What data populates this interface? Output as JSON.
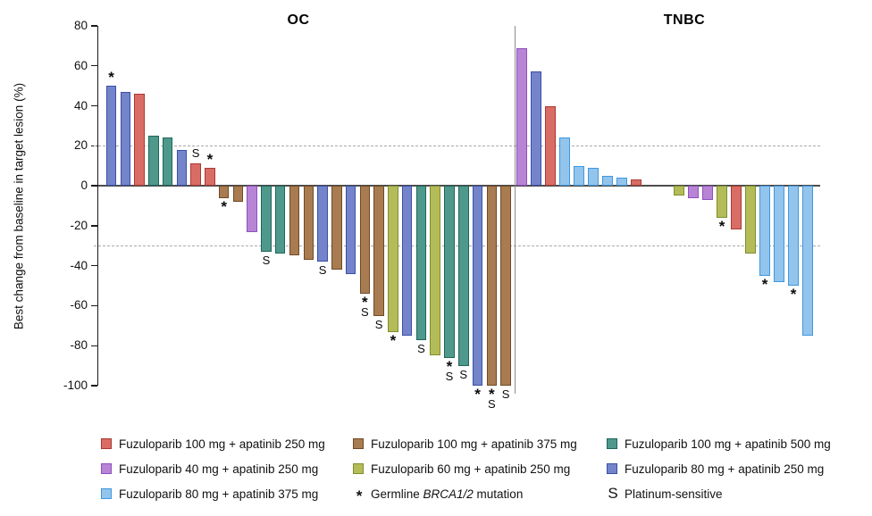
{
  "chart_data": {
    "type": "bar",
    "subtype": "waterfall",
    "title": "",
    "ylabel": "Best change from baseline in target lesion (%)",
    "ylim": [
      -100,
      80
    ],
    "yticks": [
      80,
      60,
      40,
      20,
      0,
      -20,
      -40,
      -60,
      -80,
      -100
    ],
    "reference_lines": [
      20,
      -30
    ],
    "grid": false,
    "legend_position": "bottom",
    "groups": {
      "red": {
        "fill": "#D96C64",
        "border": "#A93A33",
        "label": "Fuzuloparib 100 mg + apatinib 250 mg"
      },
      "brown": {
        "fill": "#A87C50",
        "border": "#6F4A26",
        "label": "Fuzuloparib 100 mg + apatinib 375 mg"
      },
      "teal": {
        "fill": "#4F998C",
        "border": "#1F655A",
        "label": "Fuzuloparib 100 mg + apatinib 500 mg"
      },
      "orchid": {
        "fill": "#B885D6",
        "border": "#8F4FBE",
        "label": "Fuzuloparib 40 mg + apatinib 250 mg"
      },
      "olive": {
        "fill": "#B4BC59",
        "border": "#7F8F2D",
        "label": "Fuzuloparib 60 mg + apatinib 250 mg"
      },
      "slate": {
        "fill": "#7484CB",
        "border": "#3A50A5",
        "label": "Fuzuloparib 80 mg + apatinib 250 mg"
      },
      "sky": {
        "fill": "#93C4EB",
        "border": "#3E98E0",
        "label": "Fuzuloparib 80 mg + apatinib 375 mg"
      }
    },
    "marker_meanings": {
      "*": "Germline BRCA1/2 mutation",
      "S": "Platinum-sensitive"
    },
    "panels": [
      {
        "title": "OC",
        "bars": [
          {
            "value": 50,
            "group": "slate",
            "markers": [
              "*"
            ]
          },
          {
            "value": 47,
            "group": "slate"
          },
          {
            "value": 46,
            "group": "red"
          },
          {
            "value": 25,
            "group": "teal"
          },
          {
            "value": 24,
            "group": "teal"
          },
          {
            "value": 18,
            "group": "slate"
          },
          {
            "value": 11,
            "group": "red",
            "markers": [
              "S"
            ]
          },
          {
            "value": 9,
            "group": "red",
            "markers": [
              "*"
            ]
          },
          {
            "value": -6,
            "group": "brown",
            "markers": [
              "*"
            ]
          },
          {
            "value": -8,
            "group": "brown"
          },
          {
            "value": -23,
            "group": "orchid"
          },
          {
            "value": -33,
            "group": "teal",
            "markers": [
              "S"
            ]
          },
          {
            "value": -34,
            "group": "teal"
          },
          {
            "value": -35,
            "group": "brown"
          },
          {
            "value": -37,
            "group": "brown"
          },
          {
            "value": -38,
            "group": "slate",
            "markers": [
              "S"
            ]
          },
          {
            "value": -42,
            "group": "brown"
          },
          {
            "value": -44,
            "group": "slate"
          },
          {
            "value": -54,
            "group": "brown",
            "markers": [
              "*",
              "S"
            ]
          },
          {
            "value": -65,
            "group": "brown",
            "markers": [
              "S"
            ]
          },
          {
            "value": -73,
            "group": "olive",
            "markers": [
              "*"
            ]
          },
          {
            "value": -75,
            "group": "slate"
          },
          {
            "value": -77,
            "group": "teal",
            "markers": [
              "S"
            ]
          },
          {
            "value": -85,
            "group": "olive"
          },
          {
            "value": -86,
            "group": "teal",
            "markers": [
              "*",
              "S"
            ]
          },
          {
            "value": -90,
            "group": "teal",
            "markers": [
              "S"
            ]
          },
          {
            "value": -100,
            "group": "slate",
            "markers": [
              "*"
            ]
          },
          {
            "value": -100,
            "group": "brown",
            "markers": [
              "*",
              "S"
            ]
          },
          {
            "value": -100,
            "group": "brown",
            "markers": [
              "S"
            ]
          }
        ]
      },
      {
        "title": "TNBC",
        "bars": [
          {
            "value": 69,
            "group": "orchid"
          },
          {
            "value": 57,
            "group": "slate"
          },
          {
            "value": 40,
            "group": "red"
          },
          {
            "value": 24,
            "group": "sky"
          },
          {
            "value": 10,
            "group": "sky"
          },
          {
            "value": 9,
            "group": "sky"
          },
          {
            "value": 5,
            "group": "sky"
          },
          {
            "value": 4,
            "group": "sky"
          },
          {
            "value": 3,
            "group": "red"
          },
          {
            "value": 0,
            "group": null
          },
          {
            "value": 0,
            "group": null
          },
          {
            "value": -5,
            "group": "olive"
          },
          {
            "value": -6,
            "group": "orchid"
          },
          {
            "value": -7,
            "group": "orchid"
          },
          {
            "value": -16,
            "group": "olive",
            "markers": [
              "*"
            ]
          },
          {
            "value": -22,
            "group": "red"
          },
          {
            "value": -34,
            "group": "olive"
          },
          {
            "value": -45,
            "group": "sky",
            "markers": [
              "*"
            ]
          },
          {
            "value": -48,
            "group": "sky"
          },
          {
            "value": -50,
            "group": "sky",
            "markers": [
              "*"
            ]
          },
          {
            "value": -75,
            "group": "sky"
          }
        ]
      }
    ]
  },
  "legend": {
    "items": [
      {
        "group": "red",
        "label": "Fuzuloparib 100 mg + apatinib 250 mg"
      },
      {
        "group": "brown",
        "label": "Fuzuloparib 100 mg + apatinib 375 mg"
      },
      {
        "group": "teal",
        "label": "Fuzuloparib 100 mg + apatinib 500 mg"
      },
      {
        "group": "orchid",
        "label": "Fuzuloparib 40 mg + apatinib 250 mg"
      },
      {
        "group": "olive",
        "label": "Fuzuloparib 60 mg + apatinib 250 mg"
      },
      {
        "group": "slate",
        "label": "Fuzuloparib 80 mg + apatinib 250 mg"
      },
      {
        "group": "sky",
        "label": "Fuzuloparib 80 mg + apatinib 375 mg"
      },
      {
        "symbol": "*",
        "label_prefix": "Germline ",
        "label_italic": "BRCA1/2",
        "label_suffix": " mutation"
      },
      {
        "symbol": "S",
        "label": "Platinum-sensitive"
      }
    ]
  }
}
